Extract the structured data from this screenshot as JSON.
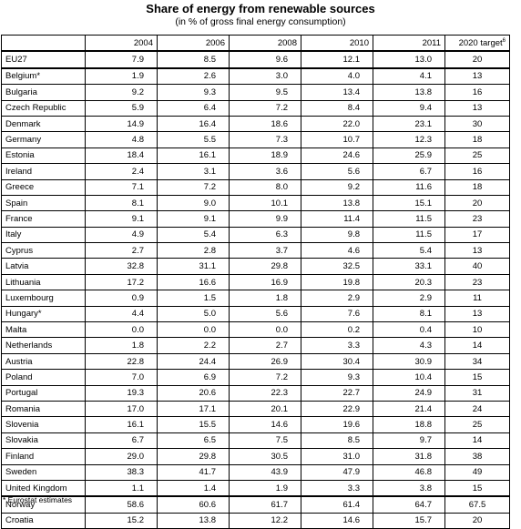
{
  "title": "Share of energy from renewable sources",
  "subtitle": "(in % of gross final energy consumption)",
  "columns": [
    "",
    "2004",
    "2006",
    "2008",
    "2010",
    "2011",
    "2020 target"
  ],
  "target_sup": "6",
  "rows": [
    [
      "EU27",
      "7.9",
      "8.5",
      "9.6",
      "12.1",
      "13.0",
      "20"
    ],
    [
      "Belgium*",
      "1.9",
      "2.6",
      "3.0",
      "4.0",
      "4.1",
      "13"
    ],
    [
      "Bulgaria",
      "9.2",
      "9.3",
      "9.5",
      "13.4",
      "13.8",
      "16"
    ],
    [
      "Czech Republic",
      "5.9",
      "6.4",
      "7.2",
      "8.4",
      "9.4",
      "13"
    ],
    [
      "Denmark",
      "14.9",
      "16.4",
      "18.6",
      "22.0",
      "23.1",
      "30"
    ],
    [
      "Germany",
      "4.8",
      "5.5",
      "7.3",
      "10.7",
      "12.3",
      "18"
    ],
    [
      "Estonia",
      "18.4",
      "16.1",
      "18.9",
      "24.6",
      "25.9",
      "25"
    ],
    [
      "Ireland",
      "2.4",
      "3.1",
      "3.6",
      "5.6",
      "6.7",
      "16"
    ],
    [
      "Greece",
      "7.1",
      "7.2",
      "8.0",
      "9.2",
      "11.6",
      "18"
    ],
    [
      "Spain",
      "8.1",
      "9.0",
      "10.1",
      "13.8",
      "15.1",
      "20"
    ],
    [
      "France",
      "9.1",
      "9.1",
      "9.9",
      "11.4",
      "11.5",
      "23"
    ],
    [
      "Italy",
      "4.9",
      "5.4",
      "6.3",
      "9.8",
      "11.5",
      "17"
    ],
    [
      "Cyprus",
      "2.7",
      "2.8",
      "3.7",
      "4.6",
      "5.4",
      "13"
    ],
    [
      "Latvia",
      "32.8",
      "31.1",
      "29.8",
      "32.5",
      "33.1",
      "40"
    ],
    [
      "Lithuania",
      "17.2",
      "16.6",
      "16.9",
      "19.8",
      "20.3",
      "23"
    ],
    [
      "Luxembourg",
      "0.9",
      "1.5",
      "1.8",
      "2.9",
      "2.9",
      "11"
    ],
    [
      "Hungary*",
      "4.4",
      "5.0",
      "5.6",
      "7.6",
      "8.1",
      "13"
    ],
    [
      "Malta",
      "0.0",
      "0.0",
      "0.0",
      "0.2",
      "0.4",
      "10"
    ],
    [
      "Netherlands",
      "1.8",
      "2.2",
      "2.7",
      "3.3",
      "4.3",
      "14"
    ],
    [
      "Austria",
      "22.8",
      "24.4",
      "26.9",
      "30.4",
      "30.9",
      "34"
    ],
    [
      "Poland",
      "7.0",
      "6.9",
      "7.2",
      "9.3",
      "10.4",
      "15"
    ],
    [
      "Portugal",
      "19.3",
      "20.6",
      "22.3",
      "22.7",
      "24.9",
      "31"
    ],
    [
      "Romania",
      "17.0",
      "17.1",
      "20.1",
      "22.9",
      "21.4",
      "24"
    ],
    [
      "Slovenia",
      "16.1",
      "15.5",
      "14.6",
      "19.6",
      "18.8",
      "25"
    ],
    [
      "Slovakia",
      "6.7",
      "6.5",
      "7.5",
      "8.5",
      "9.7",
      "14"
    ],
    [
      "Finland",
      "29.0",
      "29.8",
      "30.5",
      "31.0",
      "31.8",
      "38"
    ],
    [
      "Sweden",
      "38.3",
      "41.7",
      "43.9",
      "47.9",
      "46.8",
      "49"
    ],
    [
      "United Kingdom",
      "1.1",
      "1.4",
      "1.9",
      "3.3",
      "3.8",
      "15"
    ],
    [
      "Norway",
      "58.6",
      "60.6",
      "61.7",
      "61.4",
      "64.7",
      "67.5"
    ],
    [
      "Croatia",
      "15.2",
      "13.8",
      "12.2",
      "14.6",
      "15.7",
      "20"
    ]
  ],
  "separator_before_rows": [
    1,
    28
  ],
  "footnote": "* Eurostat estimates"
}
